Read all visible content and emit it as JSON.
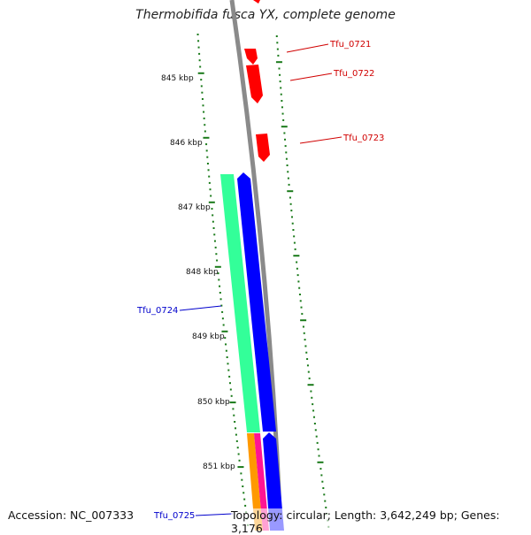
{
  "title": "Thermobifida fusca YX, complete genome",
  "footer": {
    "accession": "Accession: NC_007333",
    "summary": "Topology: circular; Length: 3,642,249 bp; Genes: 3,176"
  },
  "scale_labels": [
    "845 kbp",
    "846 kbp",
    "847 kbp",
    "848 kbp",
    "849 kbp",
    "850 kbp",
    "851 kbp"
  ],
  "gene_labels": [
    {
      "text": "Tfu_0721",
      "color": "#d00000"
    },
    {
      "text": "Tfu_0722",
      "color": "#d00000"
    },
    {
      "text": "Tfu_0723",
      "color": "#d00000"
    },
    {
      "text": "Tfu_0724",
      "color": "#0000cc"
    },
    {
      "text": "Tfu_0725",
      "color": "#0000cc"
    }
  ],
  "colors": {
    "backbone": "#8a8a8a",
    "forward_gene": "#ff0000",
    "reverse_gene": "#0000ff",
    "cds_feature": "#33ff99",
    "orange_feature": "#ff9900",
    "pink_feature": "#ff1493",
    "tick": "#1a7a1a"
  }
}
